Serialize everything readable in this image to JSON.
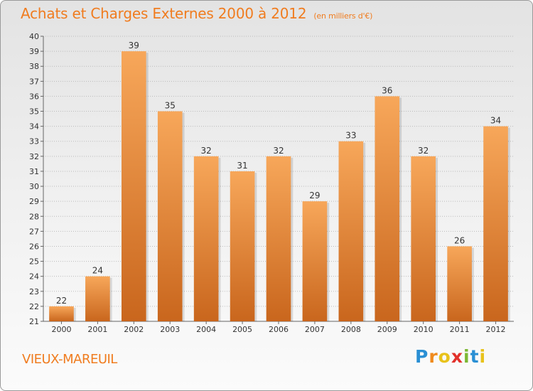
{
  "header": {
    "title": "Achats et Charges Externes 2000 à 2012",
    "unit": "(en milliers d'€)"
  },
  "footer": {
    "commune": "VIEUX-MAREUIL",
    "logo_letters": [
      "P",
      "r",
      "o",
      "x",
      "i",
      "t",
      "i"
    ],
    "logo_colors": [
      "#2a8fd4",
      "#f08a1c",
      "#e8c21a",
      "#e2312b",
      "#7cb834",
      "#2a8fd4",
      "#e8c21a"
    ]
  },
  "colors": {
    "bar_top": "#f7a75a",
    "bar_bottom": "#c9661d",
    "title": "#f07c1f",
    "grid": "#bbbbbb"
  },
  "chart_data": {
    "type": "bar",
    "categories": [
      "2000",
      "2001",
      "2002",
      "2003",
      "2004",
      "2005",
      "2006",
      "2007",
      "2008",
      "2009",
      "2010",
      "2011",
      "2012"
    ],
    "values": [
      22,
      24,
      39,
      35,
      32,
      31,
      32,
      29,
      33,
      36,
      32,
      26,
      34
    ],
    "title": "Achats et Charges Externes 2000 à 2012",
    "ylim": [
      21,
      40
    ],
    "yticks": [
      21,
      22,
      23,
      24,
      25,
      26,
      27,
      28,
      29,
      30,
      31,
      32,
      33,
      34,
      35,
      36,
      37,
      38,
      39,
      40
    ],
    "grid": true,
    "legend": "none"
  }
}
